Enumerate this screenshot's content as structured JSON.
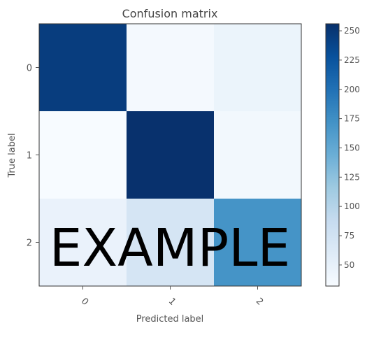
{
  "chart_data": {
    "type": "heatmap",
    "title": "Confusion matrix",
    "xlabel": "Predicted label",
    "ylabel": "True label",
    "x_ticks": [
      "0",
      "1",
      "2"
    ],
    "y_ticks": [
      "0",
      "1",
      "2"
    ],
    "matrix": [
      [
        245,
        35,
        45
      ],
      [
        30,
        255,
        38
      ],
      [
        47,
        70,
        170
      ]
    ],
    "color_range": [
      32,
      256
    ],
    "colorbar_ticks": [
      "50",
      "75",
      "100",
      "125",
      "150",
      "175",
      "200",
      "225",
      "250"
    ],
    "colormap": "Blues",
    "colors": {
      "low": "#f7fbff",
      "high": "#08306b"
    }
  },
  "overlay": {
    "text": "EXAMPLE"
  }
}
